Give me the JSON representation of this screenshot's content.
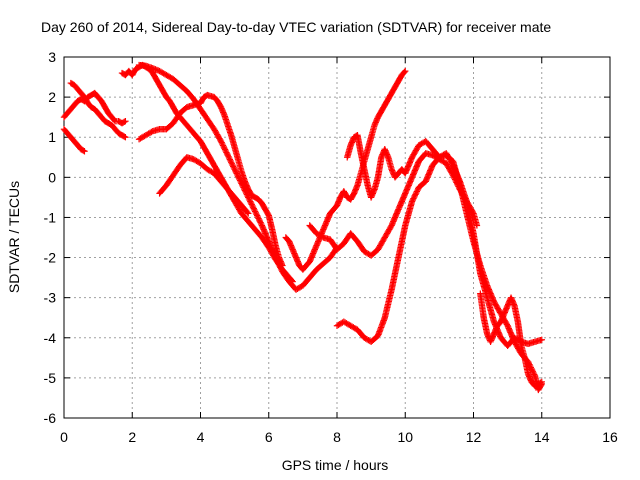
{
  "chart_data": {
    "type": "scatter",
    "title": "Day 260 of 2014, Sidereal Day-to-day VTEC variation (SDTVAR) for receiver mate",
    "xlabel": "GPS time / hours",
    "ylabel": "SDTVAR / TECUs",
    "xlim": [
      0,
      16
    ],
    "ylim": [
      -6,
      3
    ],
    "xticks": [
      0,
      2,
      4,
      6,
      8,
      10,
      12,
      14,
      16
    ],
    "yticks": [
      -6,
      -5,
      -4,
      -3,
      -2,
      -1,
      0,
      1,
      2,
      3
    ],
    "grid": true,
    "marker": "+",
    "color": "#ff0000",
    "series": [
      {
        "points": [
          [
            0.0,
            1.2
          ],
          [
            0.1,
            1.1
          ],
          [
            0.2,
            1.0
          ],
          [
            0.3,
            0.9
          ],
          [
            0.4,
            0.8
          ],
          [
            0.5,
            0.7
          ],
          [
            0.6,
            0.65
          ]
        ]
      },
      {
        "points": [
          [
            0.0,
            1.5
          ],
          [
            0.1,
            1.6
          ],
          [
            0.2,
            1.7
          ],
          [
            0.3,
            1.8
          ],
          [
            0.4,
            1.9
          ],
          [
            0.5,
            1.95
          ],
          [
            0.6,
            1.9
          ],
          [
            0.7,
            2.0
          ],
          [
            0.8,
            2.05
          ],
          [
            0.9,
            2.1
          ],
          [
            1.0,
            2.0
          ],
          [
            1.1,
            1.9
          ],
          [
            1.2,
            1.75
          ],
          [
            1.3,
            1.6
          ],
          [
            1.4,
            1.5
          ],
          [
            1.5,
            1.4
          ],
          [
            1.6,
            1.4
          ],
          [
            1.7,
            1.35
          ],
          [
            1.8,
            1.4
          ]
        ]
      },
      {
        "points": [
          [
            0.2,
            2.35
          ],
          [
            0.3,
            2.3
          ],
          [
            0.4,
            2.2
          ],
          [
            0.5,
            2.1
          ],
          [
            0.6,
            2.0
          ],
          [
            0.7,
            1.85
          ],
          [
            0.8,
            1.75
          ],
          [
            0.9,
            1.7
          ],
          [
            1.0,
            1.6
          ],
          [
            1.1,
            1.5
          ],
          [
            1.2,
            1.4
          ],
          [
            1.3,
            1.35
          ],
          [
            1.4,
            1.3
          ],
          [
            1.5,
            1.2
          ],
          [
            1.6,
            1.1
          ],
          [
            1.7,
            1.05
          ],
          [
            1.8,
            1.0
          ]
        ]
      },
      {
        "points": [
          [
            1.7,
            2.6
          ],
          [
            1.8,
            2.55
          ],
          [
            1.9,
            2.65
          ],
          [
            2.0,
            2.55
          ],
          [
            2.1,
            2.7
          ],
          [
            2.2,
            2.75
          ],
          [
            2.3,
            2.8
          ],
          [
            2.4,
            2.75
          ],
          [
            2.5,
            2.7
          ],
          [
            2.6,
            2.6
          ],
          [
            2.7,
            2.45
          ],
          [
            2.8,
            2.3
          ],
          [
            2.9,
            2.15
          ],
          [
            3.0,
            2.0
          ],
          [
            3.1,
            1.9
          ],
          [
            3.2,
            1.75
          ],
          [
            3.3,
            1.6
          ],
          [
            3.4,
            1.5
          ],
          [
            3.5,
            1.4
          ],
          [
            3.6,
            1.3
          ],
          [
            3.7,
            1.2
          ],
          [
            3.8,
            1.1
          ],
          [
            3.9,
            1.0
          ],
          [
            4.0,
            0.9
          ],
          [
            4.1,
            0.75
          ],
          [
            4.2,
            0.6
          ],
          [
            4.3,
            0.45
          ],
          [
            4.4,
            0.3
          ],
          [
            4.5,
            0.15
          ],
          [
            4.6,
            0.0
          ],
          [
            4.7,
            -0.15
          ],
          [
            4.8,
            -0.3
          ],
          [
            4.9,
            -0.45
          ],
          [
            5.0,
            -0.6
          ],
          [
            5.2,
            -0.9
          ],
          [
            5.4,
            -1.1
          ],
          [
            5.6,
            -1.3
          ],
          [
            5.8,
            -1.5
          ],
          [
            6.0,
            -1.75
          ],
          [
            6.2,
            -2.05
          ],
          [
            6.4,
            -2.3
          ],
          [
            6.6,
            -2.5
          ],
          [
            6.7,
            -2.6
          ]
        ]
      },
      {
        "points": [
          [
            2.2,
            2.8
          ],
          [
            2.4,
            2.78
          ],
          [
            2.6,
            2.72
          ],
          [
            2.8,
            2.65
          ],
          [
            3.0,
            2.55
          ],
          [
            3.2,
            2.45
          ],
          [
            3.4,
            2.3
          ],
          [
            3.6,
            2.15
          ],
          [
            3.8,
            1.95
          ],
          [
            4.0,
            1.7
          ],
          [
            4.2,
            1.45
          ],
          [
            4.4,
            1.2
          ],
          [
            4.6,
            0.9
          ],
          [
            4.8,
            0.55
          ],
          [
            5.0,
            0.2
          ],
          [
            5.2,
            -0.15
          ],
          [
            5.4,
            -0.5
          ],
          [
            5.6,
            -0.85
          ],
          [
            5.8,
            -1.2
          ],
          [
            6.0,
            -1.6
          ],
          [
            6.2,
            -2.0
          ],
          [
            6.4,
            -2.35
          ],
          [
            6.6,
            -2.6
          ],
          [
            6.8,
            -2.8
          ],
          [
            7.0,
            -2.7
          ],
          [
            7.2,
            -2.5
          ],
          [
            7.4,
            -2.3
          ],
          [
            7.6,
            -2.15
          ],
          [
            7.8,
            -2.0
          ],
          [
            8.0,
            -1.75
          ]
        ]
      },
      {
        "points": [
          [
            2.2,
            0.95
          ],
          [
            2.4,
            1.05
          ],
          [
            2.6,
            1.15
          ],
          [
            2.8,
            1.2
          ],
          [
            3.0,
            1.2
          ],
          [
            3.2,
            1.35
          ],
          [
            3.4,
            1.6
          ],
          [
            3.6,
            1.75
          ],
          [
            3.8,
            1.8
          ],
          [
            4.0,
            1.85
          ],
          [
            4.1,
            2.0
          ],
          [
            4.2,
            2.05
          ],
          [
            4.4,
            2.0
          ],
          [
            4.5,
            1.9
          ],
          [
            4.6,
            1.75
          ],
          [
            4.7,
            1.55
          ],
          [
            4.8,
            1.3
          ],
          [
            4.9,
            1.05
          ],
          [
            5.0,
            0.75
          ],
          [
            5.1,
            0.45
          ],
          [
            5.2,
            0.15
          ],
          [
            5.3,
            -0.1
          ],
          [
            5.4,
            -0.3
          ],
          [
            5.5,
            -0.45
          ],
          [
            5.6,
            -0.5
          ],
          [
            5.7,
            -0.55
          ],
          [
            5.8,
            -0.65
          ],
          [
            5.9,
            -0.8
          ],
          [
            6.0,
            -0.95
          ],
          [
            6.1,
            -1.3
          ],
          [
            6.2,
            -1.7
          ],
          [
            6.3,
            -2.0
          ],
          [
            6.4,
            -2.2
          ]
        ]
      },
      {
        "points": [
          [
            2.8,
            -0.4
          ],
          [
            3.0,
            -0.2
          ],
          [
            3.2,
            0.05
          ],
          [
            3.4,
            0.3
          ],
          [
            3.6,
            0.5
          ],
          [
            3.8,
            0.45
          ],
          [
            4.0,
            0.35
          ],
          [
            4.2,
            0.2
          ],
          [
            4.4,
            0.1
          ],
          [
            4.6,
            -0.1
          ],
          [
            4.8,
            -0.3
          ],
          [
            5.0,
            -0.5
          ],
          [
            5.2,
            -0.7
          ],
          [
            5.4,
            -0.9
          ]
        ]
      },
      {
        "points": [
          [
            6.5,
            -1.5
          ],
          [
            6.6,
            -1.6
          ],
          [
            6.7,
            -1.8
          ],
          [
            6.8,
            -2.0
          ],
          [
            6.9,
            -2.2
          ],
          [
            7.0,
            -2.3
          ],
          [
            7.1,
            -2.2
          ],
          [
            7.2,
            -2.1
          ],
          [
            7.3,
            -1.9
          ],
          [
            7.4,
            -1.7
          ],
          [
            7.5,
            -1.5
          ],
          [
            7.6,
            -1.3
          ],
          [
            7.7,
            -1.1
          ],
          [
            7.8,
            -0.9
          ],
          [
            7.9,
            -0.8
          ],
          [
            8.0,
            -0.7
          ],
          [
            8.1,
            -0.5
          ],
          [
            8.2,
            -0.35
          ],
          [
            8.3,
            -0.5
          ],
          [
            8.4,
            -0.55
          ],
          [
            8.5,
            -0.4
          ],
          [
            8.6,
            -0.2
          ],
          [
            8.7,
            0.1
          ],
          [
            8.8,
            0.4
          ],
          [
            8.9,
            0.7
          ],
          [
            9.0,
            1.0
          ],
          [
            9.1,
            1.3
          ],
          [
            9.2,
            1.5
          ],
          [
            9.3,
            1.65
          ],
          [
            9.4,
            1.8
          ],
          [
            9.5,
            1.95
          ],
          [
            9.6,
            2.1
          ],
          [
            9.7,
            2.25
          ],
          [
            9.8,
            2.4
          ],
          [
            9.9,
            2.55
          ],
          [
            10.0,
            2.65
          ]
        ]
      },
      {
        "points": [
          [
            7.2,
            -1.2
          ],
          [
            7.4,
            -1.4
          ],
          [
            7.6,
            -1.5
          ],
          [
            7.8,
            -1.55
          ],
          [
            8.0,
            -1.8
          ],
          [
            8.2,
            -1.65
          ],
          [
            8.4,
            -1.4
          ],
          [
            8.6,
            -1.6
          ],
          [
            8.8,
            -1.85
          ],
          [
            9.0,
            -1.95
          ],
          [
            9.2,
            -1.8
          ],
          [
            9.4,
            -1.5
          ],
          [
            9.6,
            -1.2
          ],
          [
            9.8,
            -0.8
          ],
          [
            10.0,
            -0.4
          ],
          [
            10.2,
            0.0
          ],
          [
            10.4,
            0.4
          ],
          [
            10.6,
            0.6
          ],
          [
            10.8,
            0.55
          ],
          [
            11.0,
            0.45
          ],
          [
            11.2,
            0.35
          ],
          [
            11.4,
            0.05
          ],
          [
            11.6,
            -0.3
          ],
          [
            11.8,
            -0.6
          ],
          [
            12.0,
            -0.9
          ],
          [
            12.1,
            -1.2
          ]
        ]
      },
      {
        "points": [
          [
            8.0,
            -3.7
          ],
          [
            8.2,
            -3.6
          ],
          [
            8.4,
            -3.7
          ],
          [
            8.6,
            -3.8
          ],
          [
            8.8,
            -4.0
          ],
          [
            9.0,
            -4.1
          ],
          [
            9.2,
            -3.95
          ],
          [
            9.4,
            -3.5
          ],
          [
            9.6,
            -2.8
          ],
          [
            9.8,
            -2.0
          ],
          [
            10.0,
            -1.2
          ],
          [
            10.2,
            -0.6
          ],
          [
            10.4,
            -0.25
          ],
          [
            10.6,
            -0.1
          ],
          [
            10.8,
            0.3
          ],
          [
            11.0,
            0.5
          ],
          [
            11.2,
            0.55
          ],
          [
            11.4,
            0.4
          ],
          [
            11.6,
            -0.2
          ],
          [
            11.8,
            -0.9
          ],
          [
            12.0,
            -1.6
          ],
          [
            12.2,
            -2.2
          ],
          [
            12.4,
            -2.7
          ],
          [
            12.6,
            -3.1
          ],
          [
            12.8,
            -3.4
          ],
          [
            13.0,
            -3.7
          ],
          [
            13.2,
            -4.1
          ],
          [
            13.4,
            -4.4
          ],
          [
            13.6,
            -4.6
          ],
          [
            13.8,
            -4.95
          ],
          [
            13.9,
            -5.3
          ],
          [
            14.0,
            -5.15
          ]
        ]
      },
      {
        "points": [
          [
            8.3,
            0.5
          ],
          [
            8.4,
            0.8
          ],
          [
            8.5,
            1.0
          ],
          [
            8.6,
            1.05
          ],
          [
            8.7,
            0.6
          ],
          [
            8.8,
            0.2
          ],
          [
            8.9,
            -0.2
          ],
          [
            9.0,
            -0.5
          ],
          [
            9.1,
            -0.3
          ],
          [
            9.2,
            0.0
          ],
          [
            9.3,
            0.5
          ],
          [
            9.4,
            0.7
          ],
          [
            9.5,
            0.5
          ],
          [
            9.6,
            0.2
          ],
          [
            9.7,
            0.0
          ],
          [
            9.8,
            0.1
          ],
          [
            9.9,
            0.2
          ],
          [
            10.0,
            0.1
          ],
          [
            10.2,
            0.5
          ],
          [
            10.4,
            0.8
          ],
          [
            10.6,
            0.9
          ],
          [
            10.8,
            0.7
          ],
          [
            11.0,
            0.5
          ],
          [
            11.2,
            0.6
          ],
          [
            11.4,
            0.3
          ],
          [
            11.6,
            -0.1
          ],
          [
            11.8,
            -0.6
          ],
          [
            12.0,
            -1.4
          ],
          [
            12.2,
            -2.4
          ],
          [
            12.4,
            -3.0
          ],
          [
            12.6,
            -3.6
          ],
          [
            12.8,
            -4.0
          ],
          [
            13.0,
            -4.2
          ],
          [
            13.2,
            -4.0
          ],
          [
            13.4,
            -4.1
          ],
          [
            13.6,
            -4.15
          ],
          [
            13.8,
            -4.1
          ],
          [
            14.0,
            -4.05
          ]
        ]
      },
      {
        "points": [
          [
            12.2,
            -2.9
          ],
          [
            12.3,
            -3.5
          ],
          [
            12.4,
            -3.9
          ],
          [
            12.5,
            -4.1
          ],
          [
            12.6,
            -3.9
          ],
          [
            12.7,
            -3.7
          ],
          [
            12.8,
            -3.6
          ],
          [
            12.9,
            -3.4
          ],
          [
            13.0,
            -3.2
          ],
          [
            13.1,
            -3.0
          ],
          [
            13.2,
            -3.2
          ],
          [
            13.3,
            -3.6
          ],
          [
            13.4,
            -4.2
          ],
          [
            13.5,
            -4.5
          ],
          [
            13.6,
            -4.9
          ],
          [
            13.7,
            -5.1
          ],
          [
            13.8,
            -5.2
          ],
          [
            14.0,
            -5.1
          ]
        ]
      }
    ]
  }
}
